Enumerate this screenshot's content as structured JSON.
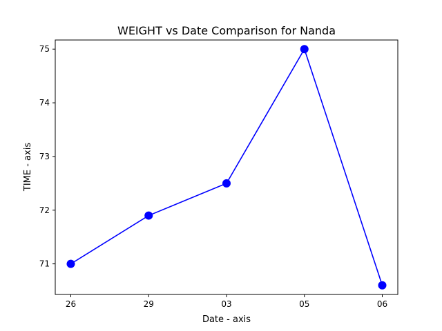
{
  "chart_data": {
    "type": "line",
    "title": "WEIGHT vs Date Comparison for Nanda",
    "xlabel": "Date - axis",
    "ylabel": "TIME - axis",
    "categories": [
      "26",
      "29",
      "03",
      "05",
      "06"
    ],
    "series": [
      {
        "values": [
          71.0,
          71.9,
          72.5,
          75.0,
          70.6
        ],
        "color": "#0000ff",
        "marker": "circle"
      }
    ],
    "ylim": [
      70.43,
      75.17
    ],
    "yticks": [
      71,
      72,
      73,
      74,
      75
    ],
    "grid": false,
    "legend": "none"
  }
}
